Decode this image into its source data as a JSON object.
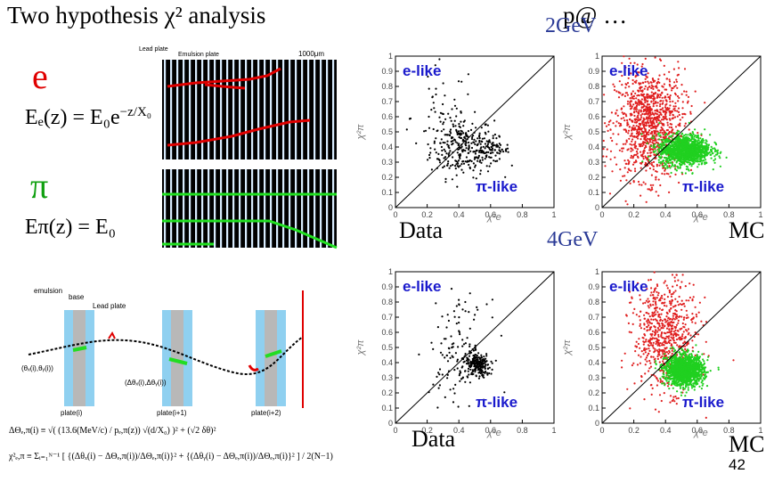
{
  "slide": {
    "title": "Two hypothesis χ² analysis",
    "header_trail": "p@ …",
    "page_number": "42"
  },
  "left": {
    "electron_symbol": "e",
    "electron_formula": "Eₑ(z) = E₀e",
    "electron_exponent": "−z/X₀",
    "pion_symbol": "π",
    "pion_formula": "Eπ(z) = E₀",
    "emulsion_labels": {
      "lead_plate": "Lead plate",
      "emulsion_plate": "Emulsion plate",
      "scale": "1000μm"
    },
    "diagram_labels": {
      "emulsion": "emulsion",
      "base": "base",
      "lead": "Lead plate",
      "theta": "(θₓ(i),θᵧ(i))",
      "dtheta": "(Δθₓ(i),Δθᵧ(i))",
      "plate_i": "plate(i)",
      "plate_i1": "plate(i+1)",
      "plate_i2": "plate(i+2)"
    },
    "eq1": "ΔΘₑ,π(i) ≡ √( (13.6(MeV/c) / pₑ,π(z)) √(d/X₀) )² + (√2 δθ)²",
    "eq2": "χ²ₑ,π ≡ Σᵢ₌₁ᴺ⁻¹ [ {(Δθₓ(i) − ΔΘₑ,π(i))/ΔΘₑ,π(i)}² + {(Δθᵧ(i) − ΔΘₑ,π(i))/ΔΘₑ,π(i)}² ] / 2(N−1)"
  },
  "right": {
    "energy_top": "2GeV",
    "energy_bottom": "4GeV",
    "label_data_top": "Data",
    "label_mc_top": "MC",
    "label_data_bottom": "Data",
    "label_mc_bottom": "MC",
    "e_like": "e-like",
    "pi_like": "π-like",
    "axis_x": "χ²e",
    "axis_y": "χ²π",
    "x_ticks": [
      "0",
      "0.2",
      "0.4",
      "0.6",
      "0.8",
      "1"
    ],
    "y_ticks": [
      "0",
      "0.1",
      "0.2",
      "0.3",
      "0.4",
      "0.5",
      "0.6",
      "0.7",
      "0.8",
      "0.9",
      "1"
    ]
  },
  "chart_data": [
    {
      "type": "scatter",
      "panel": "2GeV Data",
      "xlim": [
        0,
        1
      ],
      "ylim": [
        0,
        1
      ],
      "diagonal": true,
      "series": [
        {
          "color": "#000000",
          "clusters": [
            {
              "cx": 0.42,
              "cy": 0.4,
              "sx": 0.1,
              "sy": 0.1,
              "n": 260
            },
            {
              "cx": 0.6,
              "cy": 0.38,
              "sx": 0.06,
              "sy": 0.04,
              "n": 90
            },
            {
              "cx": 0.3,
              "cy": 0.6,
              "sx": 0.1,
              "sy": 0.18,
              "n": 50
            }
          ]
        }
      ]
    },
    {
      "type": "scatter",
      "panel": "2GeV MC",
      "xlim": [
        0,
        1
      ],
      "ylim": [
        0,
        1
      ],
      "diagonal": true,
      "series": [
        {
          "name": "e-like",
          "color": "#e02020",
          "clusters": [
            {
              "cx": 0.3,
              "cy": 0.55,
              "sx": 0.11,
              "sy": 0.18,
              "n": 1100
            }
          ]
        },
        {
          "name": "π-like",
          "color": "#20d020",
          "clusters": [
            {
              "cx": 0.52,
              "cy": 0.38,
              "sx": 0.08,
              "sy": 0.05,
              "n": 1300
            }
          ]
        }
      ]
    },
    {
      "type": "scatter",
      "panel": "4GeV Data",
      "xlim": [
        0,
        1
      ],
      "ylim": [
        0,
        1
      ],
      "diagonal": true,
      "series": [
        {
          "color": "#000000",
          "clusters": [
            {
              "cx": 0.52,
              "cy": 0.38,
              "sx": 0.04,
              "sy": 0.04,
              "n": 200
            },
            {
              "cx": 0.4,
              "cy": 0.48,
              "sx": 0.09,
              "sy": 0.16,
              "n": 130
            }
          ]
        }
      ]
    },
    {
      "type": "scatter",
      "panel": "4GeV MC",
      "xlim": [
        0,
        1
      ],
      "ylim": [
        0,
        1
      ],
      "diagonal": true,
      "series": [
        {
          "name": "e-like",
          "color": "#e02020",
          "clusters": [
            {
              "cx": 0.4,
              "cy": 0.58,
              "sx": 0.1,
              "sy": 0.18,
              "n": 700
            }
          ]
        },
        {
          "name": "π-like",
          "color": "#20d020",
          "clusters": [
            {
              "cx": 0.52,
              "cy": 0.35,
              "sx": 0.06,
              "sy": 0.05,
              "n": 1400
            }
          ]
        }
      ]
    }
  ]
}
